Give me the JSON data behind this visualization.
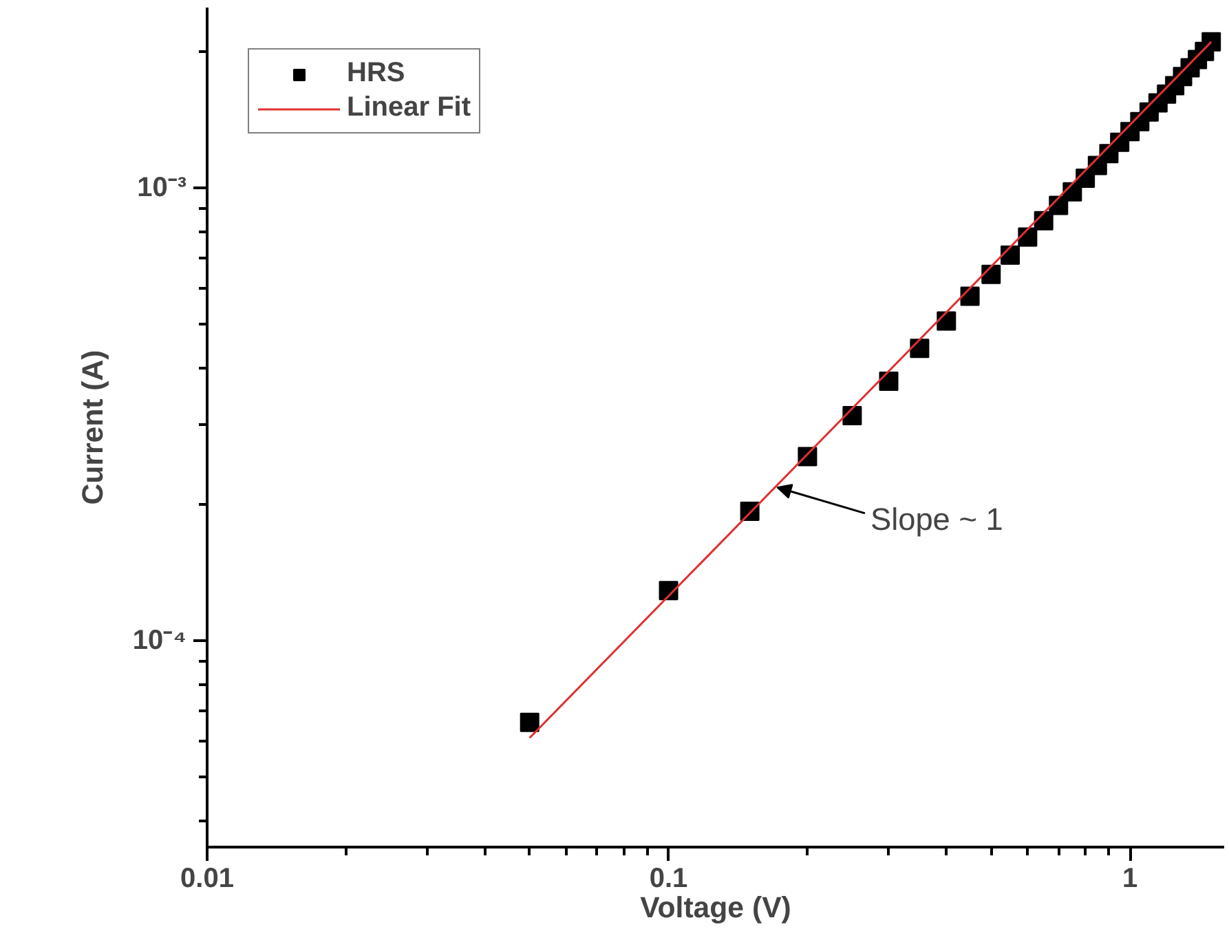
{
  "chart_data": {
    "type": "scatter",
    "xlabel": "Voltage (V)",
    "ylabel": "Current (A)",
    "log": "xy",
    "xlim": [
      0.01,
      1.6
    ],
    "ylim": [
      3.5e-05,
      0.0025
    ],
    "xticks": [
      0.01,
      0.1,
      1
    ],
    "yticks": [
      {
        "value": 0.0001,
        "label": "10⁻⁴"
      },
      {
        "value": 0.001,
        "label": "10⁻³"
      }
    ],
    "grid": false,
    "legend": "top left",
    "series": [
      {
        "name": "HRS",
        "marker": "square",
        "color": "#000000",
        "x": [
          0.05,
          0.1,
          0.15,
          0.2,
          0.25,
          0.3,
          0.35,
          0.4,
          0.45,
          0.5,
          0.55,
          0.6,
          0.65,
          0.7,
          0.75,
          0.8,
          0.85,
          0.9,
          0.95,
          1.0,
          1.05,
          1.1,
          1.15,
          1.2,
          1.25,
          1.3,
          1.35,
          1.4,
          1.45,
          1.5
        ],
        "values": [
          6.6e-05,
          0.000129,
          0.000193,
          0.000255,
          0.000314,
          0.000374,
          0.000442,
          0.000508,
          0.000576,
          0.000644,
          0.00071,
          0.000778,
          0.000846,
          0.000914,
          0.00098,
          0.00105,
          0.00112,
          0.00119,
          0.00126,
          0.00133,
          0.0014,
          0.00147,
          0.00154,
          0.00161,
          0.00168,
          0.00176,
          0.00184,
          0.00192,
          0.002,
          0.0021
        ]
      },
      {
        "name": "Linear Fit",
        "type": "line",
        "marker": "none",
        "color": "#e03030",
        "x": [
          0.05,
          1.5
        ],
        "values": [
          6.1e-05,
          0.0021
        ]
      }
    ],
    "annotations": [
      {
        "text": "Slope ~ 1",
        "x": 0.172,
        "y": 0.000218
      }
    ]
  }
}
